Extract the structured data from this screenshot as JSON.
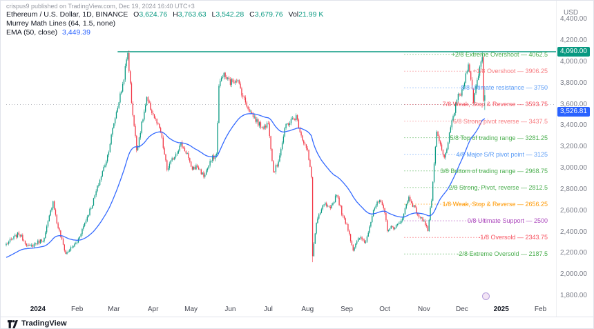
{
  "attribution": "crispus9 published on TradingView.com, Dec 19, 2024 16:40 UTC+3",
  "legend": {
    "symbol_title": "Ethereum / U.S. Dollar, 1D, BINANCE",
    "o_label": "O",
    "o_value": "3,624.76",
    "h_label": "H",
    "h_value": "3,763.63",
    "l_label": "L",
    "l_value": "3,542.28",
    "c_label": "C",
    "c_value": "3,679.76",
    "vol_label": "Vol",
    "vol_value": "21.99 K",
    "indicator_murrey": "Murrey Math Lines (64, 1.5, none)",
    "indicator_ema_label": "EMA (50, close)",
    "indicator_ema_value": "3,449.39"
  },
  "axis": {
    "currency": "USD"
  },
  "footer": {
    "brand": "TradingView"
  },
  "chart_data": {
    "type": "candlestick",
    "symbol": "Ethereum / U.S. Dollar",
    "interval": "1D",
    "exchange": "BINANCE",
    "last_candle": {
      "open": 3624.76,
      "high": 3763.63,
      "low": 3542.28,
      "close": 3679.76,
      "volume": "21.99 K"
    },
    "up_color": "#089981",
    "down_color": "#f23645",
    "ylim": [
      1800,
      4400
    ],
    "y_axis_labels": [
      {
        "text": "4,400.00",
        "price": 4400
      },
      {
        "text": "4,200.00",
        "price": 4200
      },
      {
        "text": "4,000.00",
        "price": 4000
      },
      {
        "text": "3,800.00",
        "price": 3800
      },
      {
        "text": "3,600.00",
        "price": 3600
      },
      {
        "text": "3,400.00",
        "price": 3400
      },
      {
        "text": "3,200.00",
        "price": 3200
      },
      {
        "text": "3,000.00",
        "price": 3000
      },
      {
        "text": "2,800.00",
        "price": 2800
      },
      {
        "text": "2,600.00",
        "price": 2600
      },
      {
        "text": "2,400.00",
        "price": 2400
      },
      {
        "text": "2,200.00",
        "price": 2200
      },
      {
        "text": "2,000.00",
        "price": 2000
      },
      {
        "text": "1,800.00",
        "price": 1800
      }
    ],
    "x_axis_labels": [
      {
        "text": "2024",
        "i": 25,
        "bold": true
      },
      {
        "text": "Feb",
        "i": 56
      },
      {
        "text": "Mar",
        "i": 85
      },
      {
        "text": "Apr",
        "i": 116
      },
      {
        "text": "May",
        "i": 146
      },
      {
        "text": "Jun",
        "i": 177
      },
      {
        "text": "Jul",
        "i": 207
      },
      {
        "text": "Aug",
        "i": 238
      },
      {
        "text": "Sep",
        "i": 269
      },
      {
        "text": "Oct",
        "i": 299
      },
      {
        "text": "Nov",
        "i": 330
      },
      {
        "text": "Dec",
        "i": 360
      },
      {
        "text": "2025",
        "i": 391,
        "bold": true
      },
      {
        "text": "Feb",
        "i": 422
      }
    ],
    "price_tags": [
      {
        "text": "4,090.00",
        "price": 4090,
        "color": "#089981"
      },
      {
        "text": "3,526.81",
        "price": 3526.81,
        "color": "#2962ff"
      }
    ],
    "murrey_levels": [
      {
        "label": "+2/8 Extreme Overshoot",
        "value": "4062.5",
        "price": 4062.5,
        "color": "#4caf50"
      },
      {
        "label": "+1/8 Overshoot",
        "value": "3906.25",
        "price": 3906.25,
        "color": "#f77c80"
      },
      {
        "label": "8/8 Ultimate resistance",
        "value": "3750",
        "price": 3750,
        "color": "#5b9cf6"
      },
      {
        "label": "7/8 Weak, Stop & Reverse",
        "value": "3593.75",
        "price": 3593.75,
        "color": "#f7525f"
      },
      {
        "label": "6/8 Strong pivot reverse",
        "value": "3437.5",
        "price": 3437.5,
        "color": "#f77c80"
      },
      {
        "label": "5/8 Top of trading range",
        "value": "3281.25",
        "price": 3281.25,
        "color": "#4caf50"
      },
      {
        "label": "4/8 Major S/R pivot point",
        "value": "3125",
        "price": 3125,
        "color": "#5b9cf6"
      },
      {
        "label": "3/8 Bottom of trading range",
        "value": "2968.75",
        "price": 2968.75,
        "color": "#4caf50"
      },
      {
        "label": "2/8 Strong, Pivot, reverse",
        "value": "2812.5",
        "price": 2812.5,
        "color": "#4caf50"
      },
      {
        "label": "1/8 Weak, Stop & Reverse",
        "value": "2656.25",
        "price": 2656.25,
        "color": "#ff9800"
      },
      {
        "label": "0/8 Ultimate Support",
        "value": "2500",
        "price": 2500,
        "color": "#ab47bc"
      },
      {
        "label": "-1/8 Oversold",
        "value": "2343.75",
        "price": 2343.75,
        "color": "#f7525f"
      },
      {
        "label": "-2/8 Extreme Oversold",
        "value": "2187.5",
        "price": 2187.5,
        "color": "#4caf50"
      }
    ],
    "ema": {
      "length": 50,
      "source": "close",
      "color": "#2962ff",
      "last_value": 3449.39,
      "seed": 2150
    },
    "ray": {
      "price": 4090,
      "color": "#089981",
      "start_i": 88
    },
    "dotted_level": 3593.75,
    "n_candles": 379,
    "wick_overrides": [
      {
        "i": 96,
        "high": 4093
      },
      {
        "i": 242,
        "low": 2111
      },
      {
        "i": 376,
        "high": 4088
      },
      {
        "i": 378,
        "high": 3763.63,
        "low": 3542.28
      }
    ],
    "anchors": [
      [
        0,
        2280
      ],
      [
        10,
        2380
      ],
      [
        18,
        2250
      ],
      [
        25,
        2300
      ],
      [
        30,
        2330
      ],
      [
        37,
        2690
      ],
      [
        40,
        2480
      ],
      [
        47,
        2190
      ],
      [
        56,
        2300
      ],
      [
        68,
        2660
      ],
      [
        80,
        3110
      ],
      [
        85,
        3420
      ],
      [
        92,
        3780
      ],
      [
        96,
        4080
      ],
      [
        99,
        3620
      ],
      [
        103,
        3170
      ],
      [
        111,
        3640
      ],
      [
        116,
        3500
      ],
      [
        122,
        3330
      ],
      [
        127,
        2980
      ],
      [
        131,
        3070
      ],
      [
        138,
        3220
      ],
      [
        143,
        3130
      ],
      [
        146,
        2990
      ],
      [
        151,
        3010
      ],
      [
        156,
        2920
      ],
      [
        163,
        3090
      ],
      [
        166,
        3120
      ],
      [
        168,
        3760
      ],
      [
        171,
        3880
      ],
      [
        177,
        3800
      ],
      [
        182,
        3840
      ],
      [
        188,
        3640
      ],
      [
        193,
        3520
      ],
      [
        200,
        3400
      ],
      [
        205,
        3380
      ],
      [
        207,
        3440
      ],
      [
        211,
        2960
      ],
      [
        214,
        3020
      ],
      [
        221,
        3400
      ],
      [
        229,
        3480
      ],
      [
        234,
        3270
      ],
      [
        238,
        3150
      ],
      [
        241,
        2910
      ],
      [
        242,
        2180
      ],
      [
        245,
        2480
      ],
      [
        251,
        2660
      ],
      [
        256,
        2600
      ],
      [
        261,
        2760
      ],
      [
        266,
        2530
      ],
      [
        269,
        2470
      ],
      [
        274,
        2230
      ],
      [
        279,
        2340
      ],
      [
        284,
        2300
      ],
      [
        290,
        2610
      ],
      [
        295,
        2690
      ],
      [
        299,
        2570
      ],
      [
        301,
        2420
      ],
      [
        306,
        2440
      ],
      [
        311,
        2470
      ],
      [
        318,
        2720
      ],
      [
        322,
        2630
      ],
      [
        327,
        2520
      ],
      [
        330,
        2510
      ],
      [
        333,
        2410
      ],
      [
        336,
        2700
      ],
      [
        340,
        3330
      ],
      [
        343,
        3200
      ],
      [
        346,
        3080
      ],
      [
        351,
        3360
      ],
      [
        356,
        3650
      ],
      [
        360,
        3710
      ],
      [
        363,
        3870
      ],
      [
        365,
        4000
      ],
      [
        369,
        3630
      ],
      [
        374,
        3950
      ],
      [
        376,
        4060
      ],
      [
        377,
        3620
      ],
      [
        378,
        3679.76
      ]
    ]
  }
}
